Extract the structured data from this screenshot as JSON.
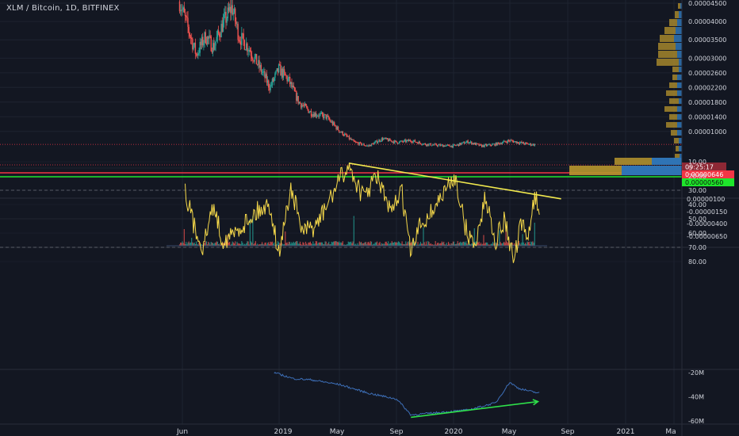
{
  "header": {
    "symbol_title": "XLM / Bitcoin, 1D, BITFINEX"
  },
  "colors": {
    "background": "#131722",
    "grid": "#1e2330",
    "pane_divider": "#2a2e39",
    "up": "#26a69a",
    "down": "#ef5350",
    "rsi_line": "#f5d84a",
    "rsi_band": "#2a1f45",
    "trendline_yellow": "#f2e94e",
    "trendline_green": "#2ee04a",
    "obv_line": "#3d6fb8",
    "price_label_red": "#f23645",
    "price_label_green": "#1ee62b",
    "vp_gold": "#b8962e",
    "vp_blue": "#2f74b5"
  },
  "price_axis": {
    "ticks": [
      "0.00004500",
      "0.00004000",
      "0.00003500",
      "0.00003000",
      "0.00002600",
      "0.00002200",
      "0.00001800",
      "0.00001400",
      "0.00001000",
      "0"
    ],
    "countdown_label": "09:25:17",
    "last_price_label": "0.00000646",
    "support_label": "0.00000560"
  },
  "volume_axis": {
    "ticks": [
      "0.00000100",
      "-0.00000150",
      "-0.00000400",
      "-0.00000650"
    ]
  },
  "rsi_axis": {
    "ticks": [
      "80.00",
      "70.00",
      "60.00",
      "50.00",
      "40.00",
      "30.00",
      "20.00",
      "10.00"
    ]
  },
  "obv_axis": {
    "ticks": [
      "-20M",
      "-40M",
      "-60M"
    ]
  },
  "time_axis": {
    "labels": [
      "Jun",
      "2019",
      "May",
      "Sep",
      "2020",
      "May",
      "Sep",
      "2021",
      "Ma"
    ]
  },
  "chart_data": [
    {
      "type": "candlestick",
      "title": "XLM / Bitcoin, 1D, BITFINEX",
      "approx_close_path": [
        {
          "t": "2018-05-20",
          "v": 4.55e-05
        },
        {
          "t": "2018-06-05",
          "v": 3.9e-05
        },
        {
          "t": "2018-06-25",
          "v": 3.1e-05
        },
        {
          "t": "2018-07-15",
          "v": 3.6e-05
        },
        {
          "t": "2018-08-01",
          "v": 3.3e-05
        },
        {
          "t": "2018-08-20",
          "v": 3.9e-05
        },
        {
          "t": "2018-09-10",
          "v": 4.4e-05
        },
        {
          "t": "2018-09-25",
          "v": 3.6e-05
        },
        {
          "t": "2018-10-15",
          "v": 3.3e-05
        },
        {
          "t": "2018-11-15",
          "v": 2.6e-05
        },
        {
          "t": "2018-12-01",
          "v": 2.2e-05
        },
        {
          "t": "2018-12-20",
          "v": 2.7e-05
        },
        {
          "t": "2019-01-10",
          "v": 2.4e-05
        },
        {
          "t": "2019-02-01",
          "v": 1.8e-05
        },
        {
          "t": "2019-03-01",
          "v": 1.5e-05
        },
        {
          "t": "2019-04-01",
          "v": 1.4e-05
        },
        {
          "t": "2019-05-01",
          "v": 1e-05
        },
        {
          "t": "2019-06-01",
          "v": 7e-06
        },
        {
          "t": "2019-07-01",
          "v": 6e-06
        },
        {
          "t": "2019-08-01",
          "v": 8e-06
        },
        {
          "t": "2019-09-01",
          "v": 7e-06
        },
        {
          "t": "2019-10-01",
          "v": 7.5e-06
        },
        {
          "t": "2019-11-01",
          "v": 6.5e-06
        },
        {
          "t": "2019-12-01",
          "v": 6.2e-06
        },
        {
          "t": "2020-01-01",
          "v": 6e-06
        },
        {
          "t": "2020-02-01",
          "v": 7.2e-06
        },
        {
          "t": "2020-03-01",
          "v": 6e-06
        },
        {
          "t": "2020-04-01",
          "v": 6.5e-06
        },
        {
          "t": "2020-05-01",
          "v": 7.5e-06
        },
        {
          "t": "2020-05-20",
          "v": 7e-06
        },
        {
          "t": "2020-06-10",
          "v": 6.5e-06
        },
        {
          "t": "2020-06-25",
          "v": 6.4e-06
        }
      ],
      "last_price": 6.46e-06,
      "support_level": 5.6e-06,
      "ylim": [
        0,
        4.6e-05
      ]
    },
    {
      "type": "bar",
      "series_name": "",
      "ylim": [
        -6.5e-06,
        1e-06
      ]
    },
    {
      "type": "line",
      "indicator": "RSI",
      "ylim": [
        10,
        80
      ],
      "band": [
        30,
        70
      ],
      "trendline": {
        "from": {
          "t": "2019-05-20",
          "v": 11
        },
        "to": {
          "t": "2020-08-20",
          "v": 36
        }
      },
      "approx_values": [
        {
          "t": "2018-06-01",
          "v": 30
        },
        {
          "t": "2018-06-20",
          "v": 55
        },
        {
          "t": "2018-07-10",
          "v": 70
        },
        {
          "t": "2018-08-01",
          "v": 40
        },
        {
          "t": "2018-08-20",
          "v": 65
        },
        {
          "t": "2018-09-10",
          "v": 62
        },
        {
          "t": "2018-10-01",
          "v": 55
        },
        {
          "t": "2018-11-01",
          "v": 45
        },
        {
          "t": "2018-12-01",
          "v": 40
        },
        {
          "t": "2018-12-20",
          "v": 75
        },
        {
          "t": "2019-01-15",
          "v": 28
        },
        {
          "t": "2019-02-10",
          "v": 60
        },
        {
          "t": "2019-03-10",
          "v": 55
        },
        {
          "t": "2019-04-01",
          "v": 42
        },
        {
          "t": "2019-05-01",
          "v": 22
        },
        {
          "t": "2019-05-20",
          "v": 13
        },
        {
          "t": "2019-06-20",
          "v": 35
        },
        {
          "t": "2019-07-20",
          "v": 20
        },
        {
          "t": "2019-08-20",
          "v": 48
        },
        {
          "t": "2019-09-10",
          "v": 28
        },
        {
          "t": "2019-10-01",
          "v": 75
        },
        {
          "t": "2019-10-20",
          "v": 55
        },
        {
          "t": "2019-11-15",
          "v": 45
        },
        {
          "t": "2019-12-15",
          "v": 30
        },
        {
          "t": "2020-01-05",
          "v": 20
        },
        {
          "t": "2020-01-25",
          "v": 55
        },
        {
          "t": "2020-02-15",
          "v": 70
        },
        {
          "t": "2020-03-10",
          "v": 35
        },
        {
          "t": "2020-04-01",
          "v": 65
        },
        {
          "t": "2020-04-20",
          "v": 50
        },
        {
          "t": "2020-05-10",
          "v": 80
        },
        {
          "t": "2020-05-25",
          "v": 55
        },
        {
          "t": "2020-06-10",
          "v": 62
        },
        {
          "t": "2020-06-25",
          "v": 32
        },
        {
          "t": "2020-07-05",
          "v": 48
        }
      ]
    },
    {
      "type": "line",
      "indicator": "OBV",
      "ylim": [
        -60000000,
        -20000000
      ],
      "trendline": {
        "from": {
          "t": "2019-10-01",
          "v": -57000000
        },
        "to": {
          "t": "2020-07-01",
          "v": -44000000
        }
      },
      "approx_values": [
        {
          "t": "2018-12-10",
          "v": -20000000
        },
        {
          "t": "2019-01-20",
          "v": -25000000
        },
        {
          "t": "2019-03-01",
          "v": -26000000
        },
        {
          "t": "2019-05-01",
          "v": -30000000
        },
        {
          "t": "2019-07-01",
          "v": -37000000
        },
        {
          "t": "2019-09-01",
          "v": -42000000
        },
        {
          "t": "2019-10-01",
          "v": -55000000
        },
        {
          "t": "2019-12-01",
          "v": -53000000
        },
        {
          "t": "2020-02-01",
          "v": -51000000
        },
        {
          "t": "2020-04-01",
          "v": -45000000
        },
        {
          "t": "2020-05-01",
          "v": -28000000
        },
        {
          "t": "2020-05-20",
          "v": -33000000
        },
        {
          "t": "2020-06-20",
          "v": -36000000
        },
        {
          "t": "2020-07-05",
          "v": -37000000
        }
      ]
    }
  ]
}
